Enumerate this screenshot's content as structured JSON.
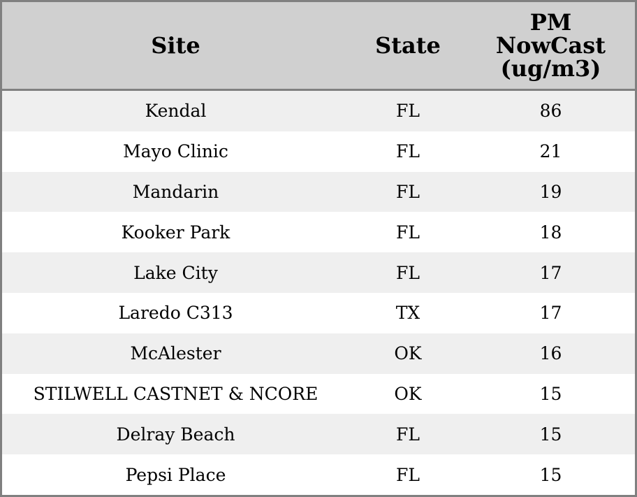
{
  "table": {
    "header": [
      "Site",
      "State",
      "PM NowCast (ug/m3)"
    ],
    "rows": [
      [
        "Kendal",
        "FL",
        86
      ],
      [
        "Mayo Clinic",
        "FL",
        21
      ],
      [
        "Mandarin",
        "FL",
        19
      ],
      [
        "Kooker Park",
        "FL",
        18
      ],
      [
        "Lake City",
        "FL",
        17
      ],
      [
        "Laredo C313",
        "TX",
        17
      ],
      [
        "McAlester",
        "OK",
        16
      ],
      [
        "STILWELL CASTNET & NCORE",
        "OK",
        15
      ],
      [
        "Delray Beach",
        "FL",
        15
      ],
      [
        "Pepsi Place",
        "FL",
        15
      ]
    ]
  }
}
